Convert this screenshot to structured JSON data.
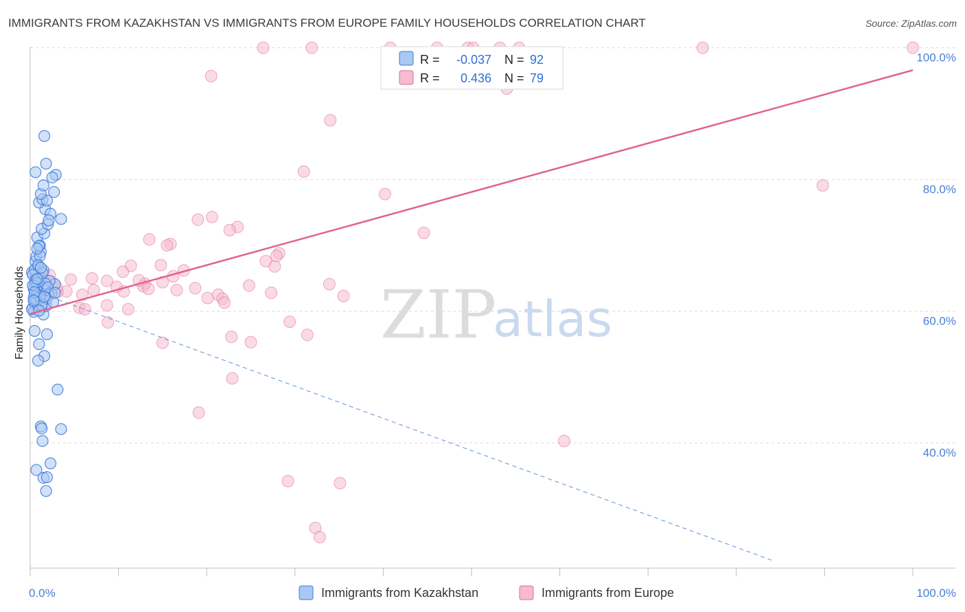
{
  "title": "IMMIGRANTS FROM KAZAKHSTAN VS IMMIGRANTS FROM EUROPE FAMILY HOUSEHOLDS CORRELATION CHART",
  "source": "Source: ZipAtlas.com",
  "watermark": {
    "zip": "ZIP",
    "atlas": "atlas"
  },
  "colors": {
    "kazakhstan_fill": "#a9c8f3",
    "kazakhstan_stroke": "#3b78d8",
    "europe_fill": "#f6bcd0",
    "europe_stroke": "#e06a93",
    "europe_line": "#e0628e",
    "kaz_line": "#5b8ed8"
  },
  "legend": {
    "r_label": "R =",
    "n_label": "N =",
    "kazakhstan": {
      "r": "-0.037",
      "n": "92"
    },
    "europe": {
      "r": "0.436",
      "n": "79"
    }
  },
  "chart_data": {
    "type": "scatter",
    "xlabel": "",
    "ylabel": "Family Households",
    "xlim": [
      0,
      100
    ],
    "ylim": [
      21,
      101
    ],
    "x_tick_labels": [
      {
        "value": 0,
        "label": "0.0%"
      },
      {
        "value": 100,
        "label": "100.0%"
      }
    ],
    "y_tick_labels": [
      {
        "value": 40,
        "label": "40.0%"
      },
      {
        "value": 60,
        "label": "60.0%"
      },
      {
        "value": 80,
        "label": "80.0%"
      },
      {
        "value": 100,
        "label": "100.0%"
      }
    ],
    "series": [
      {
        "name": "Immigrants from Kazakhstan",
        "trend": {
          "x": [
            0,
            84
          ],
          "y": [
            63.3,
            22.2
          ],
          "style": "dashed"
        },
        "points": [
          [
            0.3,
            60.5
          ],
          [
            0.5,
            64.2
          ],
          [
            0.6,
            66.0
          ],
          [
            0.4,
            62.1
          ],
          [
            0.7,
            65.3
          ],
          [
            0.8,
            63.0
          ],
          [
            0.5,
            61.2
          ],
          [
            1.0,
            64.8
          ],
          [
            0.9,
            66.8
          ],
          [
            0.6,
            67.6
          ],
          [
            1.2,
            65.0
          ],
          [
            1.4,
            63.8
          ],
          [
            0.8,
            62.6
          ],
          [
            0.4,
            59.9
          ],
          [
            1.1,
            61.9
          ],
          [
            1.6,
            63.2
          ],
          [
            1.3,
            60.6
          ],
          [
            0.2,
            65.9
          ],
          [
            0.9,
            64.0
          ],
          [
            1.5,
            66.2
          ],
          [
            2.4,
            62.7
          ],
          [
            2.8,
            64.1
          ],
          [
            1.8,
            62.1
          ],
          [
            0.7,
            68.3
          ],
          [
            1.2,
            69.0
          ],
          [
            1.1,
            70.0
          ],
          [
            0.8,
            71.2
          ],
          [
            1.6,
            71.8
          ],
          [
            1.3,
            72.5
          ],
          [
            2.0,
            73.2
          ],
          [
            1.7,
            75.5
          ],
          [
            2.3,
            74.8
          ],
          [
            1.0,
            76.5
          ],
          [
            1.4,
            77.0
          ],
          [
            1.9,
            76.8
          ],
          [
            1.2,
            77.8
          ],
          [
            2.1,
            73.8
          ],
          [
            1.5,
            79.1
          ],
          [
            2.7,
            78.1
          ],
          [
            2.9,
            80.7
          ],
          [
            0.6,
            81.1
          ],
          [
            1.6,
            86.6
          ],
          [
            1.8,
            82.4
          ],
          [
            2.5,
            80.3
          ],
          [
            3.5,
            74.0
          ],
          [
            1.1,
            68.4
          ],
          [
            1.0,
            69.9
          ],
          [
            0.8,
            69.5
          ],
          [
            0.5,
            66.3
          ],
          [
            0.3,
            65.5
          ],
          [
            0.6,
            64.7
          ],
          [
            0.4,
            63.4
          ],
          [
            0.7,
            61.4
          ],
          [
            0.2,
            60.3
          ],
          [
            0.9,
            60.9
          ],
          [
            1.5,
            59.5
          ],
          [
            1.8,
            60.8
          ],
          [
            2.1,
            62.5
          ],
          [
            0.7,
            64.3
          ],
          [
            0.9,
            67.0
          ],
          [
            1.4,
            65.8
          ],
          [
            1.9,
            61.9
          ],
          [
            2.2,
            64.6
          ],
          [
            0.5,
            57.0
          ],
          [
            1.9,
            56.5
          ],
          [
            1.0,
            55.0
          ],
          [
            1.6,
            53.2
          ],
          [
            0.9,
            52.5
          ],
          [
            3.1,
            48.1
          ],
          [
            1.2,
            42.5
          ],
          [
            1.3,
            42.2
          ],
          [
            3.5,
            42.1
          ],
          [
            1.4,
            40.3
          ],
          [
            2.3,
            36.9
          ],
          [
            0.7,
            35.9
          ],
          [
            1.5,
            34.7
          ],
          [
            1.9,
            34.8
          ],
          [
            1.8,
            32.7
          ],
          [
            0.6,
            61.8
          ],
          [
            1.1,
            62.3
          ],
          [
            1.7,
            64.2
          ],
          [
            2.6,
            61.4
          ],
          [
            0.3,
            63.9
          ],
          [
            0.5,
            62.9
          ],
          [
            1.3,
            61.0
          ],
          [
            1.0,
            60.1
          ],
          [
            2.0,
            63.6
          ],
          [
            1.6,
            62.2
          ],
          [
            0.8,
            64.9
          ],
          [
            1.2,
            66.6
          ],
          [
            2.8,
            62.8
          ],
          [
            0.4,
            61.6
          ]
        ]
      },
      {
        "name": "Immigrants from Europe",
        "trend": {
          "x": [
            0,
            100
          ],
          "y": [
            59.6,
            96.6
          ],
          "style": "solid"
        },
        "points": [
          [
            26.4,
            100
          ],
          [
            31.9,
            100
          ],
          [
            40.8,
            100
          ],
          [
            46.1,
            100
          ],
          [
            49.6,
            100
          ],
          [
            50.2,
            100
          ],
          [
            53.2,
            100
          ],
          [
            55.4,
            100
          ],
          [
            76.2,
            100
          ],
          [
            100,
            100
          ],
          [
            20.5,
            95.7
          ],
          [
            54.0,
            93.8
          ],
          [
            34.0,
            89.0
          ],
          [
            31.0,
            81.2
          ],
          [
            40.2,
            77.8
          ],
          [
            89.8,
            79.1
          ],
          [
            19.0,
            73.9
          ],
          [
            20.6,
            74.3
          ],
          [
            23.5,
            72.8
          ],
          [
            22.6,
            72.3
          ],
          [
            44.6,
            71.9
          ],
          [
            13.5,
            70.9
          ],
          [
            15.9,
            70.2
          ],
          [
            15.5,
            70.0
          ],
          [
            28.2,
            68.8
          ],
          [
            26.7,
            67.6
          ],
          [
            27.7,
            66.8
          ],
          [
            14.8,
            67.0
          ],
          [
            11.4,
            66.9
          ],
          [
            17.4,
            66.2
          ],
          [
            10.5,
            66.0
          ],
          [
            16.2,
            65.3
          ],
          [
            8.7,
            64.6
          ],
          [
            7.0,
            65.0
          ],
          [
            4.6,
            64.8
          ],
          [
            1.4,
            65.2
          ],
          [
            1.8,
            64.8
          ],
          [
            2.5,
            64.3
          ],
          [
            13.0,
            64.2
          ],
          [
            15.0,
            64.4
          ],
          [
            12.8,
            63.8
          ],
          [
            9.8,
            63.7
          ],
          [
            7.2,
            63.2
          ],
          [
            4.1,
            63.0
          ],
          [
            3.1,
            62.9
          ],
          [
            5.9,
            62.5
          ],
          [
            10.6,
            63.0
          ],
          [
            13.4,
            63.4
          ],
          [
            16.6,
            63.2
          ],
          [
            21.3,
            62.5
          ],
          [
            21.8,
            61.9
          ],
          [
            22.0,
            61.3
          ],
          [
            27.3,
            62.8
          ],
          [
            33.9,
            64.1
          ],
          [
            35.5,
            62.3
          ],
          [
            5.6,
            60.5
          ],
          [
            6.2,
            60.3
          ],
          [
            8.7,
            60.9
          ],
          [
            11.1,
            60.3
          ],
          [
            8.8,
            58.3
          ],
          [
            29.4,
            58.4
          ],
          [
            31.4,
            56.4
          ],
          [
            22.8,
            56.1
          ],
          [
            25.0,
            55.3
          ],
          [
            15.0,
            55.2
          ],
          [
            22.9,
            49.8
          ],
          [
            19.1,
            44.6
          ],
          [
            60.5,
            40.3
          ],
          [
            29.2,
            34.2
          ],
          [
            35.1,
            33.9
          ],
          [
            32.3,
            27.1
          ],
          [
            32.8,
            25.7
          ],
          [
            18.7,
            63.5
          ],
          [
            20.1,
            62.0
          ],
          [
            24.8,
            63.9
          ],
          [
            27.9,
            68.4
          ],
          [
            3.0,
            63.6
          ],
          [
            2.2,
            65.5
          ],
          [
            12.3,
            64.7
          ]
        ]
      }
    ]
  },
  "bottom_legend": {
    "kazakhstan": "Immigrants from Kazakhstan",
    "europe": "Immigrants from Europe"
  }
}
